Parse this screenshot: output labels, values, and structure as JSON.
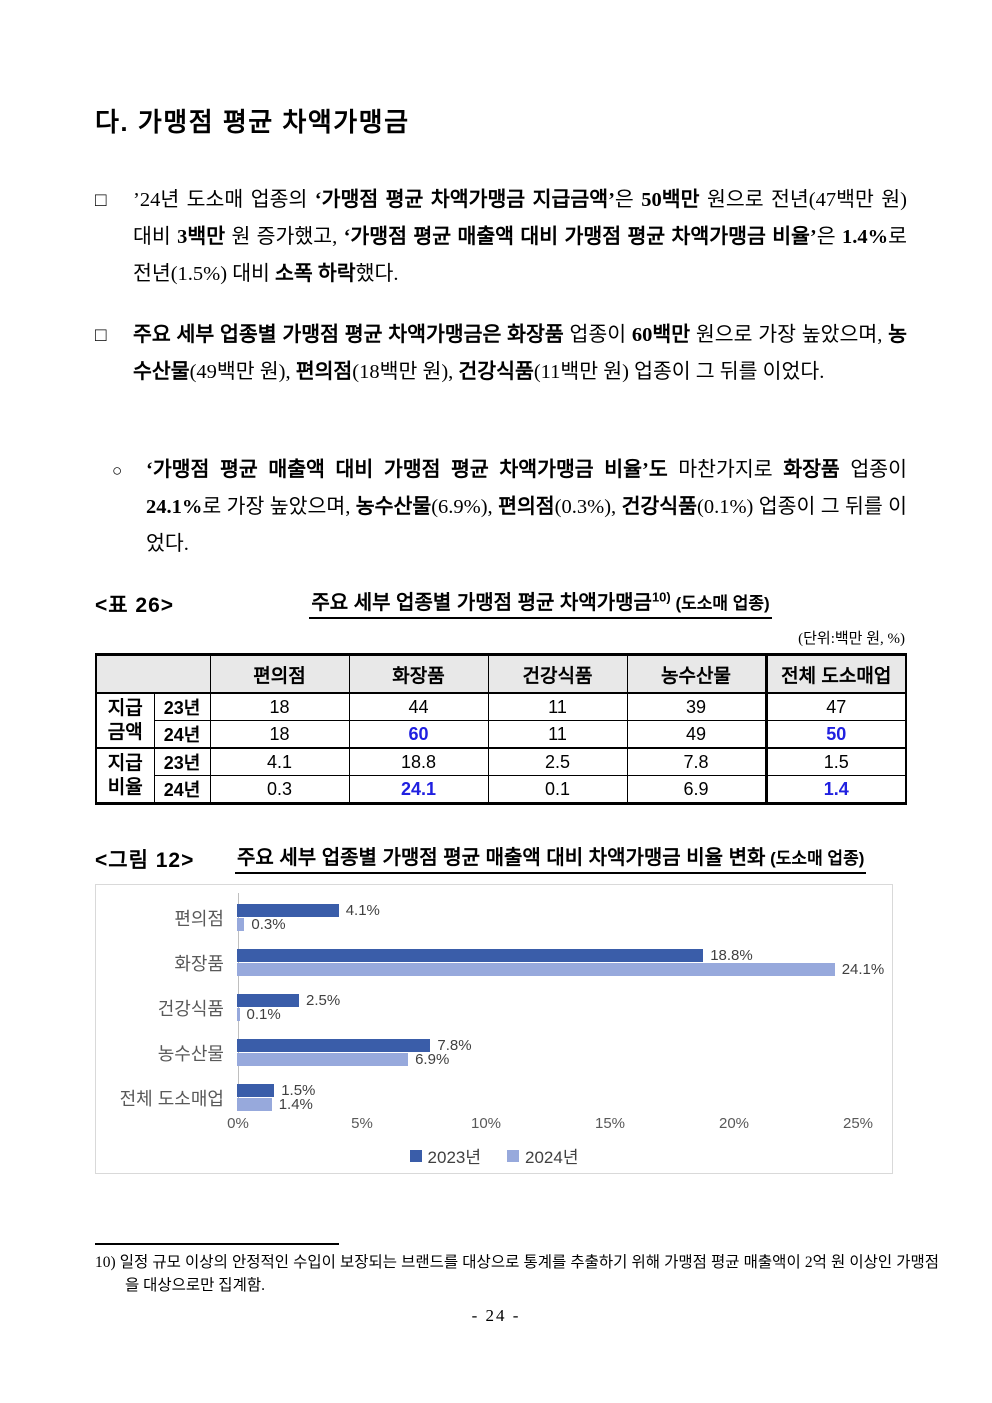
{
  "heading": "다. 가맹점 평균 차액가맹금",
  "paragraphs": [
    {
      "marker": "□",
      "runs": [
        {
          "text": "’24년 도소매 업종의 ",
          "bold": false
        },
        {
          "text": "‘가맹점 평균 차액가맹금 지급금액’",
          "bold": true
        },
        {
          "text": "은 ",
          "bold": false
        },
        {
          "text": "50백만",
          "bold": true
        },
        {
          "text": " 원으로 전년(47백만 원) 대비 ",
          "bold": false
        },
        {
          "text": "3백만",
          "bold": true
        },
        {
          "text": " 원 증가했고, ",
          "bold": false
        },
        {
          "text": "‘가맹점 평균 매출액 대비 가맹점 평균 차액가맹금 비율’",
          "bold": true
        },
        {
          "text": "은 ",
          "bold": false
        },
        {
          "text": "1.4%",
          "bold": true
        },
        {
          "text": "로 전년(1.5%) 대비 ",
          "bold": false
        },
        {
          "text": "소폭 하락",
          "bold": true
        },
        {
          "text": "했다.",
          "bold": false
        }
      ]
    },
    {
      "marker": "□",
      "runs": [
        {
          "text": "주요 세부 업종별 가맹점 평균 차액가맹금은 화장품",
          "bold": true
        },
        {
          "text": " 업종이 ",
          "bold": false
        },
        {
          "text": "60백만",
          "bold": true
        },
        {
          "text": " 원으로 가장 높았으며, ",
          "bold": false
        },
        {
          "text": "농수산물",
          "bold": true
        },
        {
          "text": "(49백만 원), ",
          "bold": false
        },
        {
          "text": "편의점",
          "bold": true
        },
        {
          "text": "(18백만 원), ",
          "bold": false
        },
        {
          "text": "건강식품",
          "bold": true
        },
        {
          "text": "(11백만 원) 업종이 그 뒤를 이었다.",
          "bold": false
        }
      ]
    },
    {
      "marker": "○",
      "runs": [
        {
          "text": "‘가맹점 평균 매출액 대비 가맹점 평균 차액가맹금 비율’도",
          "bold": true
        },
        {
          "text": " 마찬가지로 ",
          "bold": false
        },
        {
          "text": "화장품",
          "bold": true
        },
        {
          "text": " 업종이 ",
          "bold": false
        },
        {
          "text": "24.1%",
          "bold": true
        },
        {
          "text": "로 가장 높았으며, ",
          "bold": false
        },
        {
          "text": "농수산물",
          "bold": true
        },
        {
          "text": "(6.9%), ",
          "bold": false
        },
        {
          "text": "편의점",
          "bold": true
        },
        {
          "text": "(0.3%), ",
          "bold": false
        },
        {
          "text": "건강식품",
          "bold": true
        },
        {
          "text": "(0.1%) 업종이 그 뒤를 이었다.",
          "bold": false
        }
      ]
    }
  ],
  "table": {
    "tag": "<표 26>",
    "title": "주요 세부 업종별 가맹점 평균 차액가맹금",
    "title_sup": "10)",
    "title_suffix": " (도소매 업종)",
    "unit": "(단위:백만 원, %)",
    "highlight_color": "#2020e0",
    "header_bg": "#e8e8e8",
    "col_headers": [
      "편의점",
      "화장품",
      "건강식품",
      "농수산물",
      "전체 도소매업"
    ],
    "row_groups": [
      {
        "label": [
          "지급",
          "금액"
        ],
        "rows": [
          {
            "year": "23년",
            "values": [
              {
                "v": "18"
              },
              {
                "v": "44"
              },
              {
                "v": "11"
              },
              {
                "v": "39"
              },
              {
                "v": "47"
              }
            ]
          },
          {
            "year": "24년",
            "values": [
              {
                "v": "18"
              },
              {
                "v": "60",
                "hl": true
              },
              {
                "v": "11"
              },
              {
                "v": "49"
              },
              {
                "v": "50",
                "hl": true
              }
            ]
          }
        ]
      },
      {
        "label": [
          "지급",
          "비율"
        ],
        "rows": [
          {
            "year": "23년",
            "values": [
              {
                "v": "4.1"
              },
              {
                "v": "18.8"
              },
              {
                "v": "2.5"
              },
              {
                "v": "7.8"
              },
              {
                "v": "1.5"
              }
            ]
          },
          {
            "year": "24년",
            "values": [
              {
                "v": "0.3"
              },
              {
                "v": "24.1",
                "hl": true
              },
              {
                "v": "0.1"
              },
              {
                "v": "6.9"
              },
              {
                "v": "1.4",
                "hl": true
              }
            ]
          }
        ]
      }
    ]
  },
  "figure": {
    "tag": "<그림 12>",
    "title": "주요 세부 업종별 가맹점 평균 매출액 대비 차액가맹금 비율 변화",
    "title_suffix": " (도소매 업종)"
  },
  "chart_data": {
    "type": "bar",
    "orientation": "horizontal",
    "categories": [
      "편의점",
      "화장품",
      "건강식품",
      "농수산물",
      "전체 도소매업"
    ],
    "series": [
      {
        "name": "2023년",
        "color": "#3a5da9",
        "values": [
          4.1,
          18.8,
          2.5,
          7.8,
          1.5
        ]
      },
      {
        "name": "2024년",
        "color": "#97a9dc",
        "values": [
          0.3,
          24.1,
          0.1,
          6.9,
          1.4
        ]
      }
    ],
    "x_ticks": [
      "0%",
      "5%",
      "10%",
      "15%",
      "20%",
      "25%"
    ],
    "xlim": [
      0,
      25
    ],
    "data_label_format": "{v}%",
    "legend_position": "bottom",
    "grid": false,
    "axis_color": "#bfbfbf",
    "label_color": "#595959",
    "data_label_color": "#404040"
  },
  "footnote": {
    "marker": "10)",
    "text": "일정 규모 이상의 안정적인 수입이 보장되는 브랜드를 대상으로 통계를 추출하기 위해 가맹점 평균 매출액이 2억 원 이상인 가맹점을 대상으로만 집계함."
  },
  "page_number": "- 24 -"
}
